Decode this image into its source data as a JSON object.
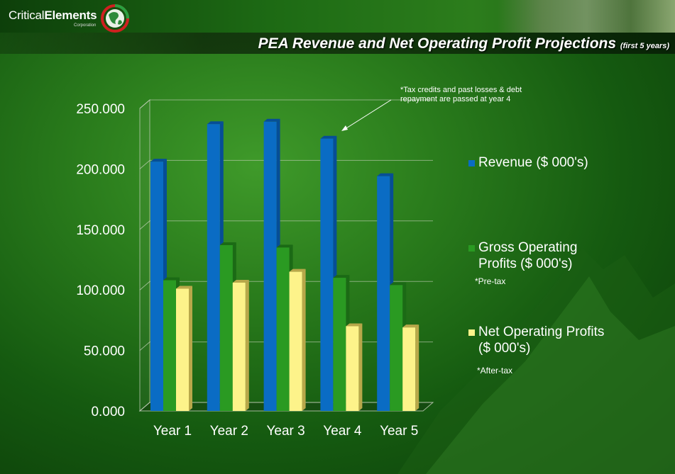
{
  "brand": {
    "name_part1": "Critical",
    "name_part2": "Elements",
    "sub": "Corporation"
  },
  "title": {
    "main": "PEA Revenue and Net Operating Profit Projections",
    "suffix": "(first 5 years)"
  },
  "annotation": {
    "line1": "*Tax credits and past losses & debt",
    "line2": "repayment are passed at year 4"
  },
  "chart_data": {
    "type": "bar",
    "categories": [
      "Year 1",
      "Year 2",
      "Year 3",
      "Year 4",
      "Year 5"
    ],
    "series": [
      {
        "name": "Revenue ($ 000's)",
        "values": [
          206,
          237,
          239,
          225,
          194
        ],
        "color": "#0a6cc4",
        "side": "#064e96"
      },
      {
        "name": "Gross Operating Profits ($ 000's)",
        "values": [
          108,
          137,
          135,
          110,
          104
        ],
        "color": "#2a9a22",
        "side": "#1b6a15"
      },
      {
        "name": "Net Operating Profits ($ 000's)",
        "values": [
          101,
          106,
          115,
          70,
          69
        ],
        "color": "#fdf38a",
        "side": "#b8a84a"
      }
    ],
    "yticks": [
      "250.000",
      "200.000",
      "150.000",
      "100.000",
      "50.000",
      "0.000"
    ],
    "ylim": [
      0,
      250
    ],
    "grid": true
  },
  "legend": [
    {
      "line1": "Revenue ($ 000's)",
      "line2": "",
      "note": "",
      "color": "#0a6cc4"
    },
    {
      "line1": "Gross Operating",
      "line2": "Profits ($ 000's)",
      "note": "*Pre-tax",
      "color": "#2a9a22"
    },
    {
      "line1": "Net Operating Profits",
      "line2": "($ 000's)",
      "note": "*After-tax",
      "color": "#fdf38a"
    }
  ]
}
